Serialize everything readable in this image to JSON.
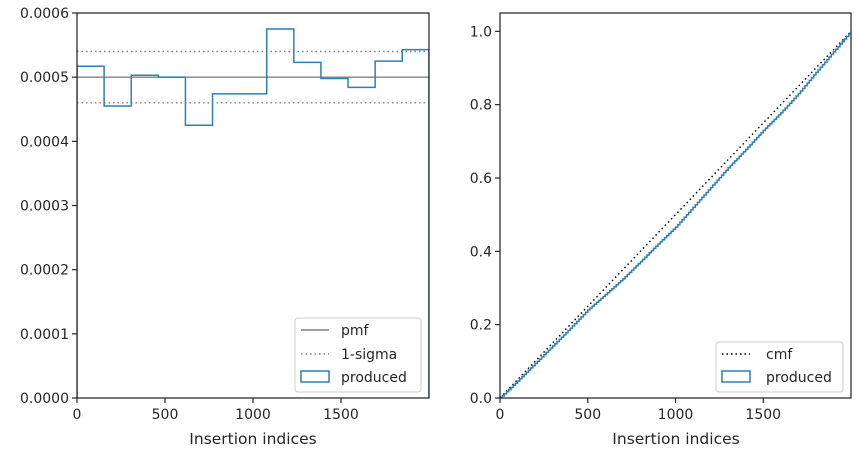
{
  "chart_data": [
    {
      "type": "line",
      "xlabel": "Insertion indices",
      "ylabel": "",
      "xlim": [
        0,
        2000
      ],
      "ylim": [
        0,
        0.0006
      ],
      "x_ticks": [
        0,
        500,
        1000,
        1500
      ],
      "x_tick_labels": [
        "0",
        "500",
        "1000",
        "1500"
      ],
      "y_ticks": [
        0,
        0.0001,
        0.0002,
        0.0003,
        0.0004,
        0.0005,
        0.0006
      ],
      "y_tick_labels": [
        "0.0000",
        "0.0001",
        "0.0002",
        "0.0003",
        "0.0004",
        "0.0005",
        "0.0006"
      ],
      "grid": false,
      "legend_position": "bottom-right",
      "legend": [
        "pmf",
        "1-sigma",
        "produced"
      ],
      "series": [
        {
          "name": "pmf",
          "style": "solid",
          "color": "#808080",
          "x": [
            0,
            2000
          ],
          "values": [
            0.0005,
            0.0005
          ]
        },
        {
          "name": "1-sigma",
          "style": "dotted",
          "color": "#808080",
          "x": [
            0,
            2000
          ],
          "values": [
            0.00054,
            0.00054
          ]
        },
        {
          "name": "1-sigma",
          "style": "dotted",
          "color": "#808080",
          "x": [
            0,
            2000
          ],
          "values": [
            0.00046,
            0.00046
          ]
        },
        {
          "name": "produced",
          "style": "step",
          "color": "#2f7fb5",
          "bin_edges": [
            0,
            154,
            308,
            462,
            616,
            770,
            924,
            1078,
            1232,
            1386,
            1540,
            1694,
            1848,
            2000
          ],
          "values": [
            0.000517,
            0.000455,
            0.000503,
            0.0005,
            0.000425,
            0.000474,
            0.000474,
            0.000575,
            0.000523,
            0.000498,
            0.000484,
            0.000525,
            0.000543
          ]
        }
      ]
    },
    {
      "type": "line",
      "xlabel": "Insertion indices",
      "ylabel": "",
      "xlim": [
        0,
        2000
      ],
      "ylim": [
        0,
        1.05
      ],
      "x_ticks": [
        0,
        500,
        1000,
        1500
      ],
      "x_tick_labels": [
        "0",
        "500",
        "1000",
        "1500"
      ],
      "y_ticks": [
        0,
        0.2,
        0.4,
        0.6,
        0.8,
        1.0
      ],
      "y_tick_labels": [
        "0.0",
        "0.2",
        "0.4",
        "0.6",
        "0.8",
        "1.0"
      ],
      "grid": false,
      "legend_position": "bottom-right",
      "legend": [
        "cmf",
        "produced"
      ],
      "series": [
        {
          "name": "cmf",
          "style": "dotted",
          "color": "#000000",
          "x": [
            0,
            2000
          ],
          "values": [
            0,
            1.0
          ]
        },
        {
          "name": "produced",
          "style": "step",
          "color": "#2f7fb5",
          "x": [
            0,
            100,
            200,
            300,
            400,
            500,
            600,
            700,
            800,
            900,
            1000,
            1100,
            1200,
            1300,
            1400,
            1500,
            1600,
            1700,
            1800,
            1900,
            2000
          ],
          "values": [
            0,
            0.046,
            0.094,
            0.142,
            0.19,
            0.24,
            0.282,
            0.325,
            0.372,
            0.42,
            0.466,
            0.52,
            0.574,
            0.628,
            0.678,
            0.73,
            0.778,
            0.83,
            0.888,
            0.944,
            1.0
          ]
        }
      ]
    }
  ]
}
